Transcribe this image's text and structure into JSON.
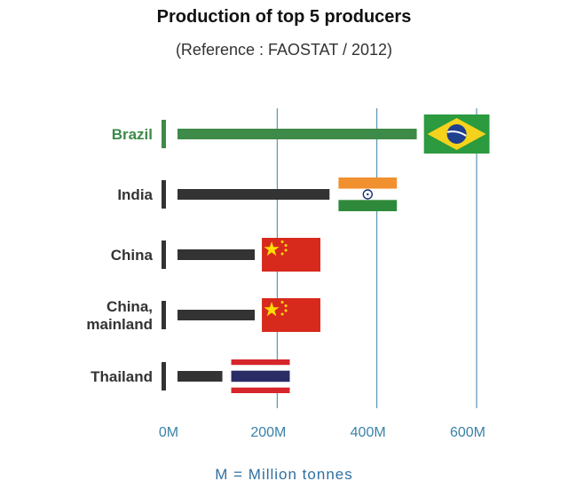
{
  "chart_data": {
    "type": "bar",
    "orientation": "horizontal",
    "title": "Production of top 5 producers",
    "subtitle": "(Reference : FAOSTAT / 2012)",
    "categories": [
      "Brazil",
      "India",
      "China",
      "China, mainland",
      "Thailand"
    ],
    "values": [
      480,
      305,
      155,
      155,
      90
    ],
    "unit": "M",
    "xlim": [
      0,
      600
    ],
    "xticks": [
      0,
      200,
      400,
      600
    ],
    "xtick_labels": [
      "0M",
      "200M",
      "400M",
      "600M"
    ],
    "grid": true,
    "footnote": "M = Million tonnes",
    "flags": [
      "brazil-flag",
      "india-flag",
      "china-flag",
      "china-flag",
      "thailand-flag"
    ],
    "highlight_index": 0
  },
  "colors": {
    "highlight": "#3e8a48",
    "bar": "#333333",
    "grid": "#3a82a8",
    "axis_text": "#3a82a8",
    "label": "#333333",
    "footnote": "#2f6fa0"
  }
}
